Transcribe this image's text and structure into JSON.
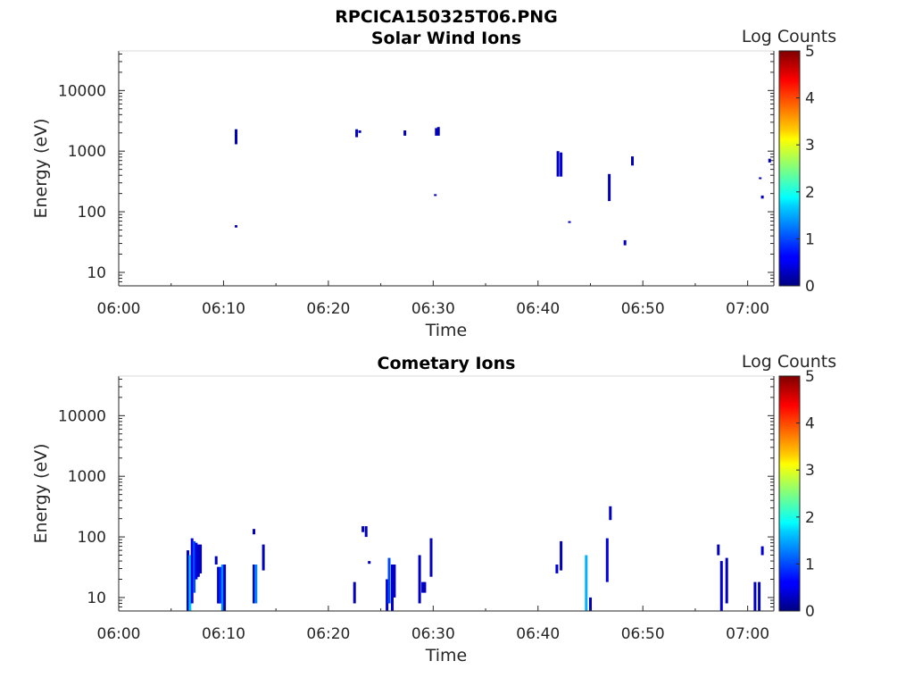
{
  "figure_title": "RPCICA150325T06.PNG",
  "chart_data": [
    {
      "type": "heatmap",
      "title": "Solar Wind Ions",
      "xlabel": "Time",
      "ylabel": "Energy (eV)",
      "yscale": "log",
      "ylim": [
        6,
        45000
      ],
      "xlim": [
        "06:00",
        "07:02.5"
      ],
      "x_ticks": [
        "06:00",
        "06:10",
        "06:20",
        "06:30",
        "06:40",
        "06:50",
        "07:00"
      ],
      "y_ticks": [
        "10",
        "100",
        "1000",
        "10000"
      ],
      "y_tick_values": [
        10,
        100,
        1000,
        10000
      ],
      "colorbar": {
        "label": "Log Counts",
        "range": [
          0,
          5
        ],
        "ticks": [
          "0",
          "1",
          "2",
          "3",
          "4",
          "5"
        ]
      },
      "grid": false,
      "cells": [
        {
          "t": 11.2,
          "e_lo": 1300,
          "e_hi": 2300,
          "v": 0.3
        },
        {
          "t": 11.2,
          "e_lo": 55,
          "e_hi": 60,
          "v": 0.3
        },
        {
          "t": 22.7,
          "e_lo": 1700,
          "e_hi": 2300,
          "v": 0.3
        },
        {
          "t": 23.0,
          "e_lo": 2000,
          "e_hi": 2200,
          "v": 0.3
        },
        {
          "t": 27.3,
          "e_lo": 1800,
          "e_hi": 2200,
          "v": 0.3
        },
        {
          "t": 30.3,
          "e_lo": 1800,
          "e_hi": 2400,
          "v": 0.3
        },
        {
          "t": 30.5,
          "e_lo": 1800,
          "e_hi": 2500,
          "v": 0.3
        },
        {
          "t": 30.2,
          "e_lo": 185,
          "e_hi": 195,
          "v": 0.3
        },
        {
          "t": 41.9,
          "e_lo": 380,
          "e_hi": 1000,
          "v": 0.3
        },
        {
          "t": 42.2,
          "e_lo": 380,
          "e_hi": 950,
          "v": 0.4
        },
        {
          "t": 43.0,
          "e_lo": 66,
          "e_hi": 70,
          "v": 0.3
        },
        {
          "t": 46.8,
          "e_lo": 150,
          "e_hi": 420,
          "v": 0.3
        },
        {
          "t": 48.3,
          "e_lo": 28,
          "e_hi": 34,
          "v": 0.3
        },
        {
          "t": 49.0,
          "e_lo": 580,
          "e_hi": 820,
          "v": 0.3
        },
        {
          "t": 61.2,
          "e_lo": 350,
          "e_hi": 370,
          "v": 0.3
        },
        {
          "t": 61.4,
          "e_lo": 165,
          "e_hi": 185,
          "v": 0.3
        },
        {
          "t": 62.1,
          "e_lo": 650,
          "e_hi": 750,
          "v": 0.3
        }
      ]
    },
    {
      "type": "heatmap",
      "title": "Cometary Ions",
      "xlabel": "Time",
      "ylabel": "Energy (eV)",
      "yscale": "log",
      "ylim": [
        6,
        45000
      ],
      "xlim": [
        "06:00",
        "07:02.5"
      ],
      "x_ticks": [
        "06:00",
        "06:10",
        "06:20",
        "06:30",
        "06:40",
        "06:50",
        "07:00"
      ],
      "y_ticks": [
        "10",
        "100",
        "1000",
        "10000"
      ],
      "y_tick_values": [
        10,
        100,
        1000,
        10000
      ],
      "colorbar": {
        "label": "Log Counts",
        "range": [
          0,
          5
        ],
        "ticks": [
          "0",
          "1",
          "2",
          "3",
          "4",
          "5"
        ]
      },
      "grid": false,
      "cells": [
        {
          "t": 6.6,
          "e_lo": 6,
          "e_hi": 60,
          "v": 0.4
        },
        {
          "t": 6.8,
          "e_lo": 6,
          "e_hi": 50,
          "v": 1.6
        },
        {
          "t": 7.0,
          "e_lo": 8,
          "e_hi": 95,
          "v": 0.5
        },
        {
          "t": 7.2,
          "e_lo": 12,
          "e_hi": 85,
          "v": 1.0
        },
        {
          "t": 7.4,
          "e_lo": 20,
          "e_hi": 80,
          "v": 0.5
        },
        {
          "t": 7.6,
          "e_lo": 22,
          "e_hi": 75,
          "v": 0.3
        },
        {
          "t": 7.8,
          "e_lo": 25,
          "e_hi": 75,
          "v": 0.3
        },
        {
          "t": 9.3,
          "e_lo": 35,
          "e_hi": 48,
          "v": 0.3
        },
        {
          "t": 9.5,
          "e_lo": 8,
          "e_hi": 32,
          "v": 0.4
        },
        {
          "t": 9.7,
          "e_lo": 8,
          "e_hi": 32,
          "v": 0.8
        },
        {
          "t": 9.9,
          "e_lo": 6,
          "e_hi": 35,
          "v": 1.3
        },
        {
          "t": 10.1,
          "e_lo": 6,
          "e_hi": 35,
          "v": 0.4
        },
        {
          "t": 12.9,
          "e_lo": 110,
          "e_hi": 135,
          "v": 0.3
        },
        {
          "t": 12.9,
          "e_lo": 8,
          "e_hi": 35,
          "v": 0.4
        },
        {
          "t": 13.1,
          "e_lo": 8,
          "e_hi": 35,
          "v": 1.3
        },
        {
          "t": 13.8,
          "e_lo": 28,
          "e_hi": 75,
          "v": 0.3
        },
        {
          "t": 22.5,
          "e_lo": 8,
          "e_hi": 18,
          "v": 0.3
        },
        {
          "t": 23.3,
          "e_lo": 120,
          "e_hi": 150,
          "v": 0.3
        },
        {
          "t": 23.6,
          "e_lo": 100,
          "e_hi": 150,
          "v": 0.3
        },
        {
          "t": 23.9,
          "e_lo": 36,
          "e_hi": 40,
          "v": 0.3
        },
        {
          "t": 25.6,
          "e_lo": 6,
          "e_hi": 20,
          "v": 0.4
        },
        {
          "t": 25.8,
          "e_lo": 8,
          "e_hi": 45,
          "v": 1.0
        },
        {
          "t": 26.1,
          "e_lo": 6,
          "e_hi": 35,
          "v": 0.4
        },
        {
          "t": 26.3,
          "e_lo": 10,
          "e_hi": 35,
          "v": 0.3
        },
        {
          "t": 28.7,
          "e_lo": 8,
          "e_hi": 50,
          "v": 0.3
        },
        {
          "t": 29.0,
          "e_lo": 12,
          "e_hi": 18,
          "v": 0.3
        },
        {
          "t": 29.2,
          "e_lo": 12,
          "e_hi": 18,
          "v": 0.3
        },
        {
          "t": 29.8,
          "e_lo": 22,
          "e_hi": 95,
          "v": 0.3
        },
        {
          "t": 41.8,
          "e_lo": 25,
          "e_hi": 35,
          "v": 0.4
        },
        {
          "t": 42.2,
          "e_lo": 28,
          "e_hi": 85,
          "v": 0.3
        },
        {
          "t": 44.6,
          "e_lo": 6,
          "e_hi": 50,
          "v": 1.5
        },
        {
          "t": 45.0,
          "e_lo": 6,
          "e_hi": 10,
          "v": 0.3
        },
        {
          "t": 46.6,
          "e_lo": 18,
          "e_hi": 95,
          "v": 0.5
        },
        {
          "t": 46.9,
          "e_lo": 190,
          "e_hi": 320,
          "v": 0.3
        },
        {
          "t": 57.2,
          "e_lo": 50,
          "e_hi": 75,
          "v": 0.3
        },
        {
          "t": 57.5,
          "e_lo": 6,
          "e_hi": 40,
          "v": 0.4
        },
        {
          "t": 58.0,
          "e_lo": 8,
          "e_hi": 45,
          "v": 0.3
        },
        {
          "t": 60.7,
          "e_lo": 6,
          "e_hi": 18,
          "v": 0.3
        },
        {
          "t": 61.1,
          "e_lo": 6,
          "e_hi": 18,
          "v": 0.3
        },
        {
          "t": 61.4,
          "e_lo": 50,
          "e_hi": 70,
          "v": 0.4
        }
      ]
    }
  ]
}
